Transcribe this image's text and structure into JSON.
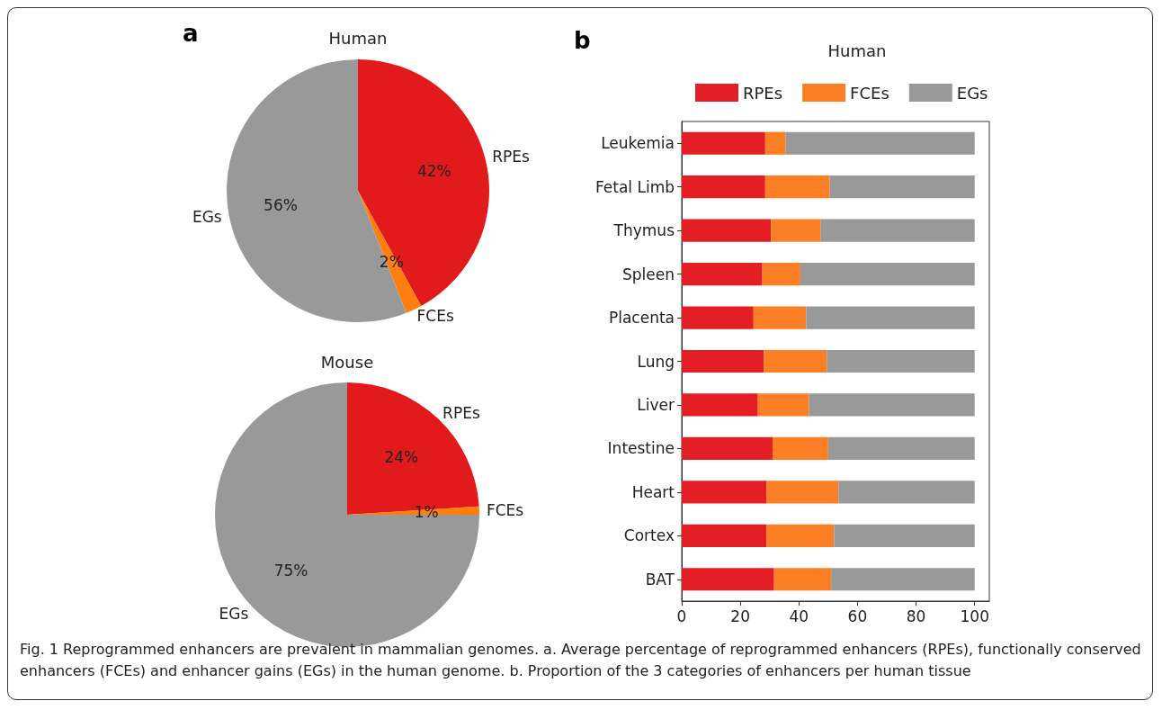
{
  "chart_data": [
    {
      "type": "pie",
      "title": "Human",
      "categories": [
        "RPEs",
        "FCEs",
        "EGs"
      ],
      "values": [
        42,
        2,
        56
      ],
      "colors": [
        "#e31a1c",
        "#ff7f0e",
        "#999999"
      ],
      "value_labels": [
        "42%",
        "2%",
        "56%"
      ],
      "legend": false,
      "annotations": [
        "a"
      ]
    },
    {
      "type": "pie",
      "title": "Mouse",
      "categories": [
        "RPEs",
        "FCEs",
        "EGs"
      ],
      "values": [
        24,
        1,
        75
      ],
      "colors": [
        "#e31a1c",
        "#ff7f0e",
        "#999999"
      ],
      "value_labels": [
        "24%",
        "1%",
        "75%"
      ],
      "legend": false
    },
    {
      "type": "bar",
      "title": "Human",
      "orientation": "horizontal",
      "stacked": true,
      "legend": "top",
      "grid": false,
      "categories": [
        "Leukemia",
        "Fetal Limb",
        "Thymus",
        "Spleen",
        "Placenta",
        "Lung",
        "Liver",
        "Intestine",
        "Heart",
        "Cortex",
        "BAT"
      ],
      "series": [
        {
          "name": "RPEs",
          "color": "#e31e24",
          "values": [
            28.5,
            28.5,
            30.5,
            27.5,
            24.5,
            28,
            26,
            31,
            29,
            29,
            31.5
          ]
        },
        {
          "name": "FCEs",
          "color": "#fc7f25",
          "values": [
            7,
            22,
            17,
            13,
            18,
            21.5,
            17.5,
            19,
            24.5,
            23,
            19.5
          ]
        },
        {
          "name": "EGs",
          "color": "#999999",
          "values": [
            64.5,
            49.5,
            52.5,
            59.5,
            57.5,
            50.5,
            56.5,
            50,
            46.5,
            48,
            49
          ]
        }
      ],
      "xlim": [
        0,
        105
      ],
      "xticks": [
        0,
        20,
        40,
        60,
        80,
        100
      ],
      "annotations": [
        "b",
        "Fig. 1 Reprogrammed enhancers are prevalent in mammalian genomes. a. Average percentage of reprogrammed enhancers (RPEs), functionally conserved enhancers (FCEs) and enhancer gains (EGs) in the human genome. b. Proportion of the 3 categories of enhancers per human tissue"
      ]
    }
  ]
}
